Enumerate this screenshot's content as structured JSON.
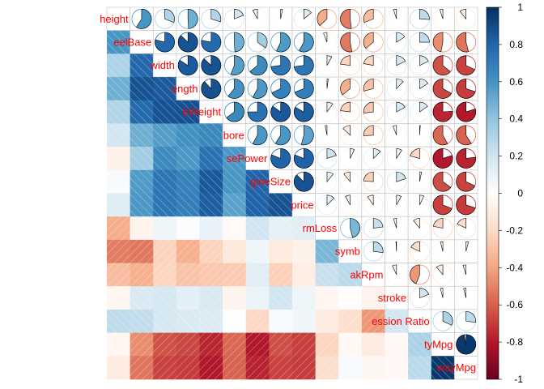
{
  "chart_data": {
    "type": "heatmap",
    "title": "",
    "variables": [
      "height",
      "wheelBase",
      "width",
      "length",
      "curbWeight",
      "bore",
      "horsePower",
      "engineSize",
      "price",
      "normLoss",
      "symboling",
      "peakRpm",
      "stroke",
      "compressionRatio",
      "cityMpg",
      "highwayMpg"
    ],
    "shown_labels": [
      "height",
      "eelBase",
      "width",
      "ength",
      "bWeight",
      "bore",
      "sePower",
      "gineSize",
      "price",
      "rmLoss",
      "symb",
      "akRpm",
      "stroke",
      "ession Ratio",
      "tyMpg",
      "wayMpg"
    ],
    "upper_method": "pie",
    "lower_method": "shade",
    "matrix": [
      [
        1,
        0.59,
        0.31,
        0.49,
        0.3,
        0.19,
        -0.08,
        0.03,
        0.14,
        -0.37,
        -0.52,
        -0.31,
        -0.05,
        0.26,
        -0.05,
        -0.11
      ],
      [
        0.59,
        1,
        0.79,
        0.87,
        0.78,
        0.49,
        0.35,
        0.57,
        0.58,
        -0.06,
        -0.53,
        -0.36,
        0.16,
        0.25,
        -0.47,
        -0.54
      ],
      [
        0.31,
        0.79,
        1,
        0.84,
        0.87,
        0.56,
        0.64,
        0.73,
        0.73,
        0.08,
        -0.23,
        -0.22,
        0.18,
        0.18,
        -0.64,
        -0.68
      ],
      [
        0.49,
        0.87,
        0.84,
        1,
        0.88,
        0.61,
        0.58,
        0.68,
        0.69,
        0.02,
        -0.36,
        -0.29,
        0.12,
        0.16,
        -0.67,
        -0.7
      ],
      [
        0.3,
        0.78,
        0.87,
        0.88,
        1,
        0.65,
        0.75,
        0.85,
        0.83,
        0.1,
        -0.23,
        -0.27,
        0.17,
        0.15,
        -0.76,
        -0.8
      ],
      [
        0.19,
        0.49,
        0.56,
        0.61,
        0.65,
        1,
        0.58,
        0.59,
        0.54,
        -0.03,
        -0.13,
        -0.26,
        -0.06,
        0.01,
        -0.58,
        -0.59
      ],
      [
        -0.08,
        0.35,
        0.64,
        0.58,
        0.75,
        0.58,
        1,
        0.81,
        0.81,
        0.2,
        0.07,
        0.13,
        0.09,
        -0.21,
        -0.8,
        -0.77
      ],
      [
        0.03,
        0.57,
        0.73,
        0.68,
        0.85,
        0.59,
        0.81,
        1,
        0.87,
        0.11,
        -0.11,
        -0.24,
        0.2,
        0.03,
        -0.65,
        -0.68
      ],
      [
        0.14,
        0.58,
        0.73,
        0.69,
        0.83,
        0.54,
        0.81,
        0.87,
        1,
        0.13,
        -0.08,
        -0.1,
        0.08,
        0.07,
        -0.69,
        -0.7
      ],
      [
        -0.37,
        -0.06,
        0.08,
        0.02,
        0.1,
        -0.03,
        0.2,
        0.11,
        0.13,
        1,
        0.46,
        0.23,
        -0.05,
        -0.11,
        -0.22,
        -0.18
      ],
      [
        -0.52,
        -0.53,
        -0.23,
        -0.36,
        -0.23,
        -0.13,
        0.07,
        -0.11,
        -0.08,
        0.46,
        1,
        0.27,
        -0.01,
        -0.18,
        -0.04,
        0.04
      ],
      [
        -0.31,
        -0.36,
        -0.22,
        -0.29,
        -0.27,
        -0.26,
        0.13,
        -0.24,
        -0.1,
        0.23,
        0.27,
        1,
        -0.07,
        -0.44,
        -0.11,
        -0.05
      ],
      [
        -0.05,
        0.16,
        0.18,
        0.12,
        0.17,
        -0.06,
        0.09,
        0.2,
        0.08,
        -0.05,
        -0.01,
        -0.07,
        1,
        0.19,
        -0.04,
        -0.04
      ],
      [
        0.26,
        0.25,
        0.18,
        0.16,
        0.15,
        0.01,
        -0.21,
        0.03,
        0.07,
        -0.11,
        -0.18,
        -0.44,
        0.19,
        1,
        0.32,
        0.27
      ],
      [
        -0.05,
        -0.47,
        -0.64,
        -0.67,
        -0.76,
        -0.58,
        -0.8,
        -0.65,
        -0.69,
        -0.22,
        -0.04,
        -0.11,
        -0.04,
        0.32,
        1,
        0.97
      ],
      [
        -0.11,
        -0.54,
        -0.68,
        -0.7,
        -0.8,
        -0.59,
        -0.77,
        -0.68,
        -0.7,
        -0.18,
        0.04,
        -0.05,
        -0.04,
        0.27,
        0.97,
        1
      ]
    ],
    "colorbar": {
      "ticks": [
        "1",
        "0.8",
        "0.6",
        "0.4",
        "0.2",
        "0",
        "-0.2",
        "-0.4",
        "-0.6",
        "-0.8",
        "-1"
      ],
      "range": [
        -1,
        1
      ]
    },
    "colors": {
      "negative_end": "#67001F",
      "neutral": "#FFFFFF",
      "positive_end": "#053061",
      "label": "#FF0000",
      "grid": "#bfbfbf"
    },
    "legend_placement": "right"
  }
}
